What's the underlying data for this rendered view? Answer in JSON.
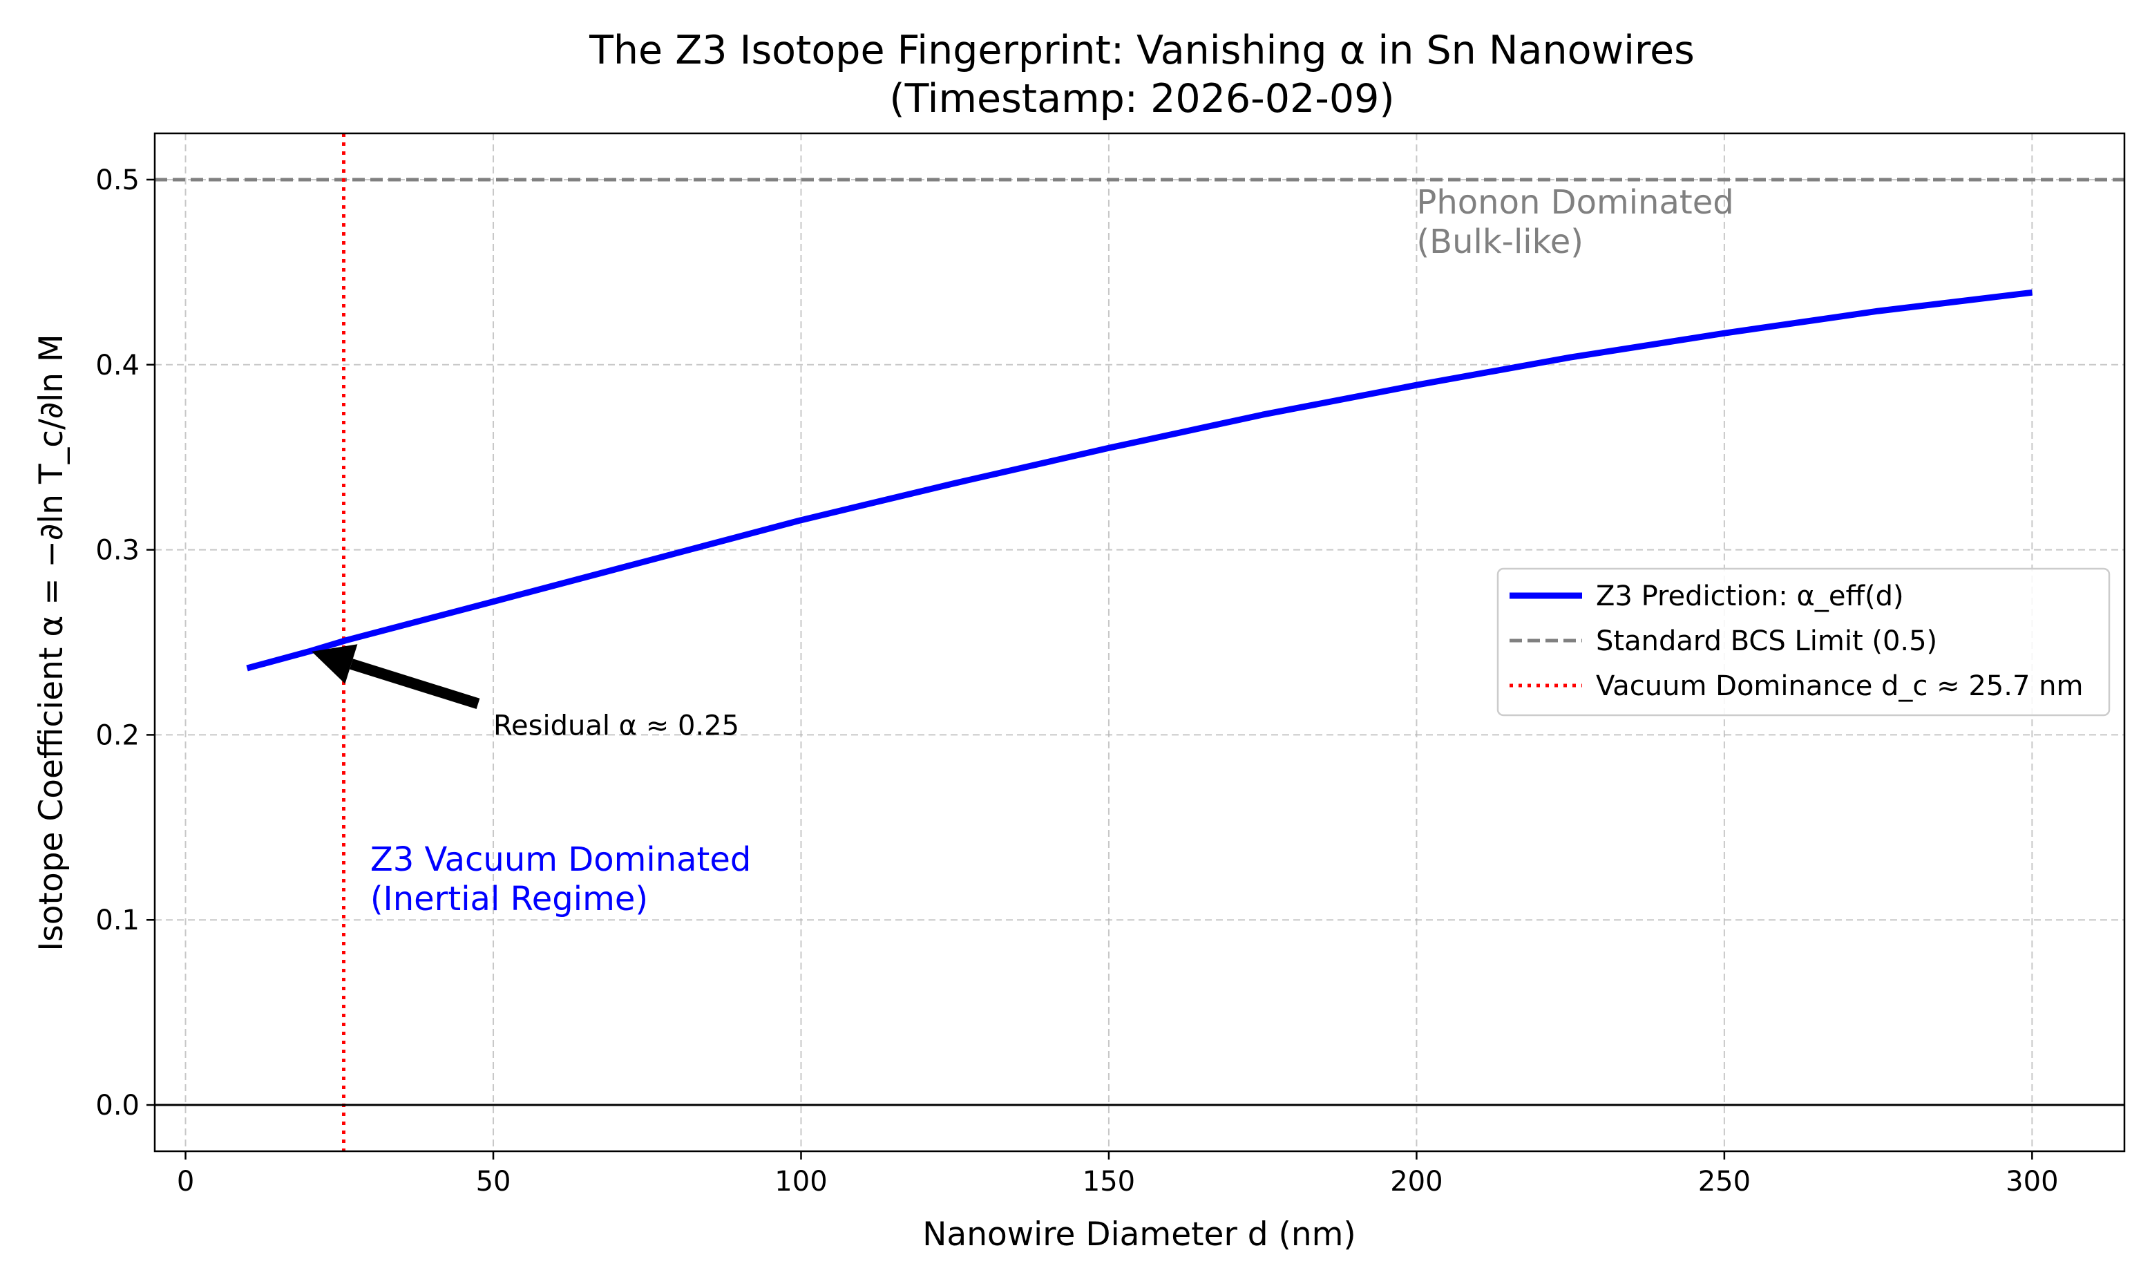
{
  "chart_data": {
    "type": "line",
    "title_line1": "The Z3 Isotope Fingerprint: Vanishing α in Sn Nanowires",
    "title_line2": "(Timestamp: 2026-02-09)",
    "xlabel": "Nanowire Diameter d (nm)",
    "ylabel": "Isotope Coefficient α = −∂ln T_c/∂ln M",
    "xlim": [
      -5,
      315
    ],
    "ylim": [
      -0.025,
      0.525
    ],
    "xticks": [
      0,
      50,
      100,
      150,
      200,
      250,
      300
    ],
    "yticks": [
      0.0,
      0.1,
      0.2,
      0.3,
      0.4,
      0.5
    ],
    "grid": true,
    "legend_position": "center-right",
    "series": [
      {
        "name": "Z3 Prediction: α_eff(d)",
        "color": "#0000ff",
        "style": "solid",
        "x": [
          10,
          20,
          26,
          50,
          75,
          100,
          125,
          150,
          175,
          200,
          225,
          250,
          275,
          300
        ],
        "y": [
          0.236,
          0.245,
          0.251,
          0.272,
          0.294,
          0.316,
          0.336,
          0.355,
          0.373,
          0.389,
          0.404,
          0.417,
          0.429,
          0.439
        ]
      }
    ],
    "reference_lines": [
      {
        "name": "Standard BCS Limit (0.5)",
        "orientation": "horizontal",
        "value": 0.5,
        "color": "#808080",
        "style": "dashed"
      },
      {
        "name": "Vacuum Dominance d_c ≈ 25.7 nm",
        "orientation": "vertical",
        "value": 25.7,
        "color": "#ff0000",
        "style": "dotted"
      },
      {
        "orientation": "horizontal",
        "value": 0.0,
        "color": "#000000",
        "style": "solid"
      }
    ],
    "annotations": [
      {
        "text": "Residual α ≈ 0.25",
        "x": 50,
        "y": 0.2,
        "arrow_to": [
          20.5,
          0.245
        ]
      },
      {
        "text_lines": [
          "Phonon Dominated",
          "(Bulk-like)"
        ],
        "x": 200,
        "y": 0.46,
        "color": "#808080"
      },
      {
        "text_lines": [
          "Z3 Vacuum Dominated",
          "(Inertial Regime)"
        ],
        "x": 30,
        "y": 0.105,
        "color": "#0000ff"
      }
    ]
  }
}
